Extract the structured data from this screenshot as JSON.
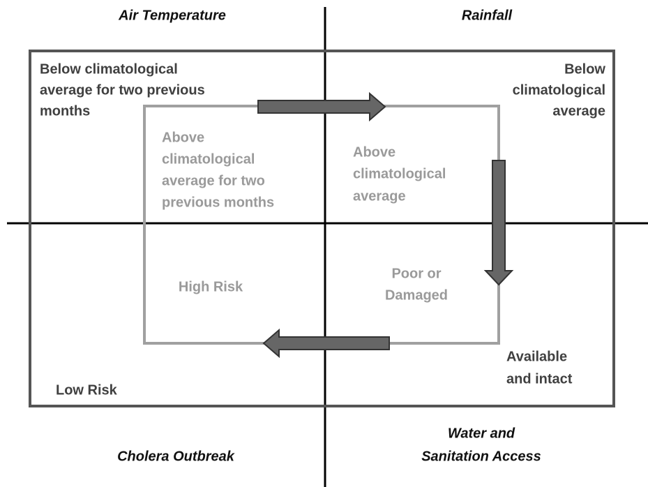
{
  "headers": {
    "top_left": "Air Temperature",
    "top_right": "Rainfall",
    "bottom_left": "Cholera Outbreak",
    "bottom_right": [
      "Water and",
      "Sanitation Access"
    ]
  },
  "outer": {
    "top_left": [
      "Below climatological",
      "average for two previous",
      "months"
    ],
    "top_right": [
      "Below",
      "climatological",
      "average"
    ],
    "bottom_right": [
      "Available",
      "and intact"
    ],
    "bottom_left": [
      "Low Risk"
    ]
  },
  "inner": {
    "top_left": [
      "Above",
      "climatological",
      "average for two",
      "previous months"
    ],
    "top_right": [
      "Above",
      "climatological",
      "average"
    ],
    "bottom_right": [
      "Poor or",
      "Damaged"
    ],
    "bottom_left": [
      "High Risk"
    ]
  }
}
